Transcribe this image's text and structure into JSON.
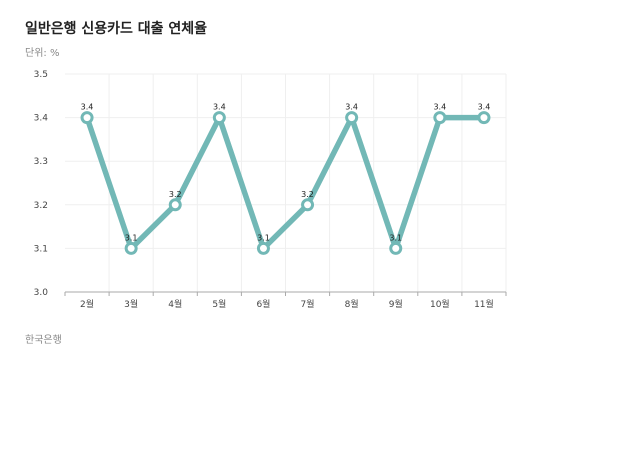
{
  "page": {
    "title": "일반은행 신용카드 대출 연체율",
    "unit": "단위: %",
    "source": "한국은행"
  },
  "colors": {
    "line": "#72b8b6",
    "grid": "#efefef",
    "axis": "#aaaaaa"
  },
  "chart_data": {
    "type": "line",
    "categories": [
      "2월",
      "3월",
      "4월",
      "5월",
      "6월",
      "7월",
      "8월",
      "9월",
      "10월",
      "11월"
    ],
    "series": [
      {
        "values": [
          3.4,
          3.1,
          3.2,
          3.4,
          3.1,
          3.2,
          3.4,
          3.1,
          3.4,
          3.4
        ]
      }
    ],
    "data_labels": [
      "3.4",
      "3.1",
      "3.2",
      "3.4",
      "3.1",
      "3.2",
      "3.4",
      "3.1",
      "3.4",
      "3.4"
    ],
    "yticks": [
      "3.0",
      "3.1",
      "3.2",
      "3.3",
      "3.4",
      "3.5"
    ],
    "ylim": [
      3.0,
      3.5
    ],
    "grid": true,
    "legend": "none"
  }
}
